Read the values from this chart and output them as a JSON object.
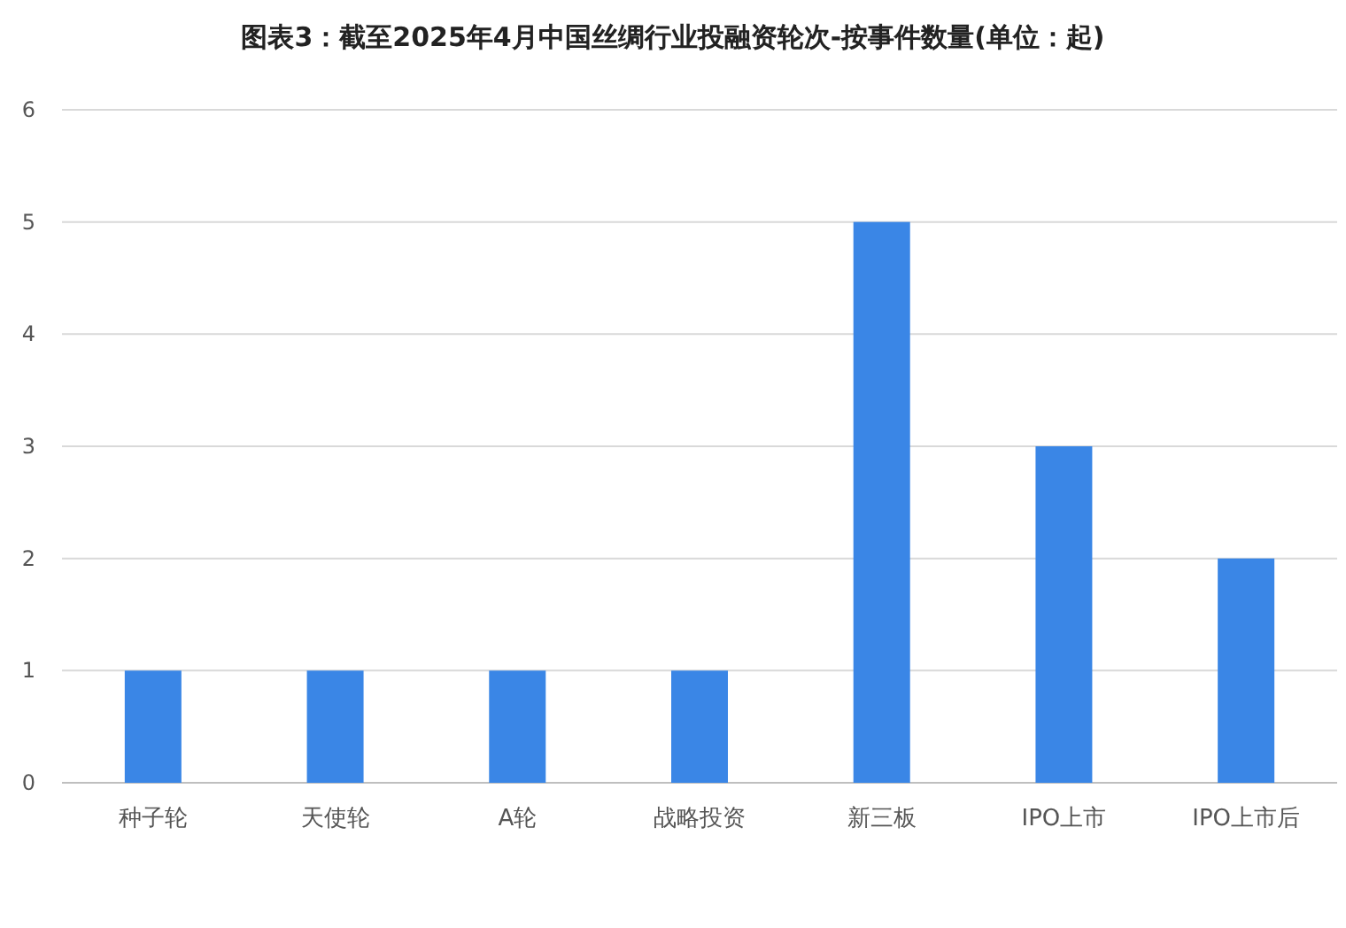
{
  "chart_data": {
    "type": "bar",
    "title": "图表3：截至2025年4月中国丝绸行业投融资轮次-按事件数量(单位：起)",
    "categories": [
      "种子轮",
      "天使轮",
      "A轮",
      "战略投资",
      "新三板",
      "IPO上市",
      "IPO上市后"
    ],
    "values": [
      1,
      1,
      1,
      1,
      5,
      3,
      2
    ],
    "color": "#3a86e6",
    "ylim": [
      0,
      6
    ],
    "yticks": [
      0,
      1,
      2,
      3,
      4,
      5,
      6
    ],
    "grid": "y"
  }
}
